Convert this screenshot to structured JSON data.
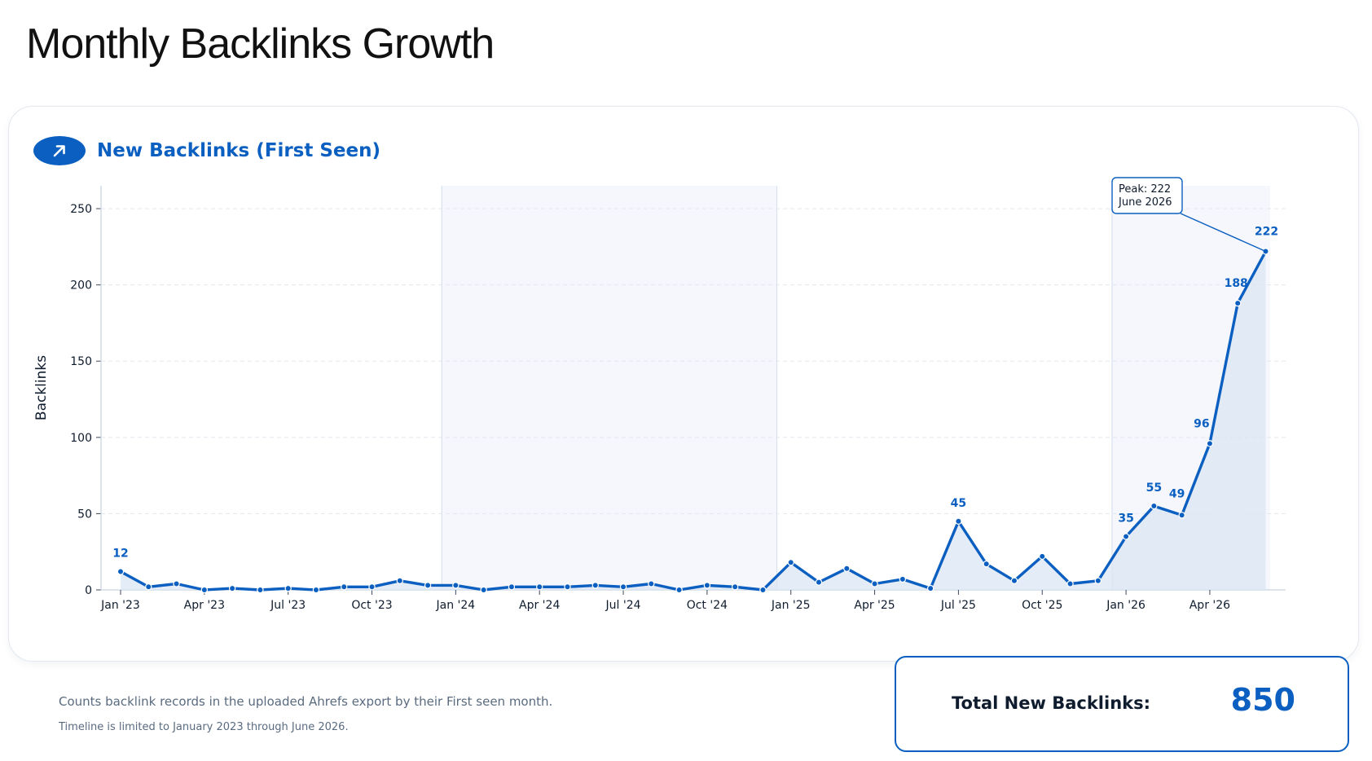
{
  "page": {
    "title": "Monthly Backlinks Growth"
  },
  "card": {
    "icon": "trend-up-arrow-icon",
    "title": "New Backlinks (First Seen)"
  },
  "colors": {
    "accent": "#0b5fc0",
    "fill": "#dbe6f4",
    "band": "#f5f7fc",
    "grid": "#e3e8ef",
    "text": "#0f1c2e"
  },
  "chart_data": {
    "type": "area",
    "title": "",
    "xlabel": "",
    "ylabel": "Backlinks",
    "ylim": [
      0,
      265
    ],
    "yticks": [
      0,
      50,
      100,
      150,
      200,
      250
    ],
    "grid": "horizontal, dashed",
    "x": [
      "2023-01",
      "2023-02",
      "2023-03",
      "2023-04",
      "2023-05",
      "2023-06",
      "2023-07",
      "2023-08",
      "2023-09",
      "2023-10",
      "2023-11",
      "2023-12",
      "2024-01",
      "2024-02",
      "2024-03",
      "2024-04",
      "2024-05",
      "2024-06",
      "2024-07",
      "2024-08",
      "2024-09",
      "2024-10",
      "2024-11",
      "2024-12",
      "2025-01",
      "2025-02",
      "2025-03",
      "2025-04",
      "2025-05",
      "2025-06",
      "2025-07",
      "2025-08",
      "2025-09",
      "2025-10",
      "2025-11",
      "2025-12",
      "2026-01",
      "2026-02",
      "2026-03",
      "2026-04",
      "2026-05",
      "2026-06"
    ],
    "values": [
      12,
      2,
      4,
      0,
      1,
      0,
      1,
      0,
      2,
      2,
      6,
      3,
      3,
      0,
      2,
      2,
      2,
      3,
      2,
      4,
      0,
      3,
      2,
      0,
      18,
      5,
      14,
      4,
      7,
      1,
      45,
      17,
      6,
      22,
      4,
      6,
      35,
      55,
      49,
      96,
      188,
      222
    ],
    "x_tick_labels": [
      {
        "index": 0,
        "label": "Jan '23"
      },
      {
        "index": 3,
        "label": "Apr '23"
      },
      {
        "index": 6,
        "label": "Jul '23"
      },
      {
        "index": 9,
        "label": "Oct '23"
      },
      {
        "index": 12,
        "label": "Jan '24"
      },
      {
        "index": 15,
        "label": "Apr '24"
      },
      {
        "index": 18,
        "label": "Jul '24"
      },
      {
        "index": 21,
        "label": "Oct '24"
      },
      {
        "index": 24,
        "label": "Jan '25"
      },
      {
        "index": 27,
        "label": "Apr '25"
      },
      {
        "index": 30,
        "label": "Jul '25"
      },
      {
        "index": 33,
        "label": "Oct '25"
      },
      {
        "index": 36,
        "label": "Jan '26"
      },
      {
        "index": 39,
        "label": "Apr '26"
      }
    ],
    "data_labels": [
      {
        "index": 0,
        "text": "12"
      },
      {
        "index": 30,
        "text": "45"
      },
      {
        "index": 36,
        "text": "35"
      },
      {
        "index": 37,
        "text": "55"
      },
      {
        "index": 38,
        "text": "49"
      },
      {
        "index": 39,
        "text": "96"
      },
      {
        "index": 40,
        "text": "188"
      },
      {
        "index": 41,
        "text": "222"
      }
    ],
    "shaded_years": [
      "2024",
      "2026"
    ],
    "annotation": {
      "index": 41,
      "lines": [
        "Peak: 222",
        "June 2026"
      ]
    }
  },
  "footer": {
    "note_primary": "Counts backlink records in the uploaded Ahrefs export by their First seen month.",
    "note_secondary": "Timeline is limited to January 2023 through June 2026."
  },
  "total": {
    "label": "Total New Backlinks:",
    "value": "850"
  }
}
